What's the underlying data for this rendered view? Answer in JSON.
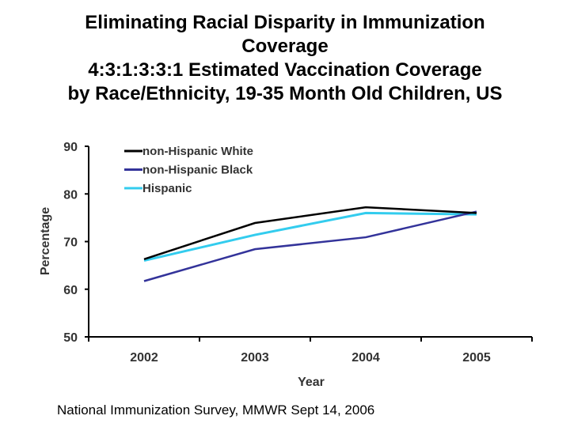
{
  "title_lines": [
    "Eliminating Racial Disparity in Immunization",
    "Coverage",
    "4:3:1:3:3:1 Estimated Vaccination Coverage",
    "by Race/Ethnicity, 19-35 Month Old Children, US"
  ],
  "footer": "National Immunization Survey, MMWR Sept 14, 2006",
  "chart_data": {
    "type": "line",
    "title": "Eliminating Racial Disparity in Immunization Coverage 4:3:1:3:3:1 Estimated Vaccination Coverage by Race/Ethnicity, 19-35 Month Old Children, US",
    "xlabel": "Year",
    "ylabel": "Percentage",
    "categories": [
      "2002",
      "2003",
      "2004",
      "2005"
    ],
    "ylim": [
      50,
      90
    ],
    "yticks": [
      50,
      60,
      70,
      80,
      90
    ],
    "grid": false,
    "legend": "top-left",
    "series": [
      {
        "name": "non-Hispanic White",
        "color": "#000000",
        "values": [
          66.3,
          73.9,
          77.2,
          76.0
        ]
      },
      {
        "name": "non-Hispanic Black",
        "color": "#33339a",
        "values": [
          61.7,
          68.4,
          70.9,
          76.3
        ]
      },
      {
        "name": "Hispanic",
        "color": "#33ccee",
        "values": [
          66.0,
          71.4,
          76.0,
          75.7
        ]
      }
    ]
  }
}
